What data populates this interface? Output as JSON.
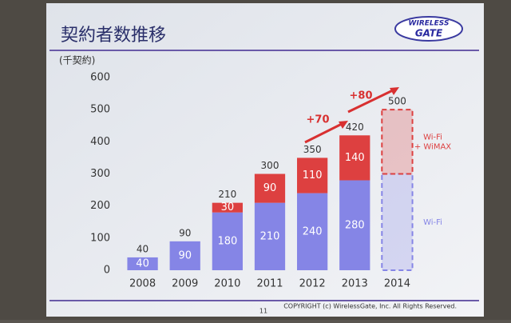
{
  "chart_data": {
    "type": "stacked-bar",
    "title": "契約者数推移",
    "y_label": "(千契約)",
    "logo": [
      "WIRELESS",
      "GATE"
    ],
    "categories": [
      "2008",
      "2009",
      "2010",
      "2011",
      "2012",
      "2013",
      "2014"
    ],
    "series": [
      {
        "name": "Wi-Fi",
        "color": "#8585e6",
        "values": [
          40,
          90,
          180,
          210,
          240,
          280,
          300
        ],
        "value_labels": [
          "40",
          "90",
          "180",
          "210",
          "240",
          "280",
          null
        ]
      },
      {
        "name": "Wi-Fi\n+ WiMAX",
        "color": "#dd4040",
        "values": [
          null,
          null,
          30,
          90,
          110,
          140,
          200
        ],
        "value_labels": [
          null,
          null,
          "30",
          "90",
          "110",
          "140",
          null
        ]
      }
    ],
    "totals": [
      40,
      90,
      210,
      300,
      350,
      420,
      500
    ],
    "dashed": [
      false,
      false,
      false,
      false,
      false,
      false,
      true
    ],
    "annotations": [
      "+70",
      "+80"
    ],
    "ylim": [
      0,
      600
    ],
    "yticks": [
      0,
      100,
      200,
      300,
      400,
      500,
      600
    ],
    "grid": false,
    "footer": {
      "page": "11",
      "copyright": "COPYRIGHT (c) WirelessGate, Inc. All Rights Reserved."
    }
  }
}
